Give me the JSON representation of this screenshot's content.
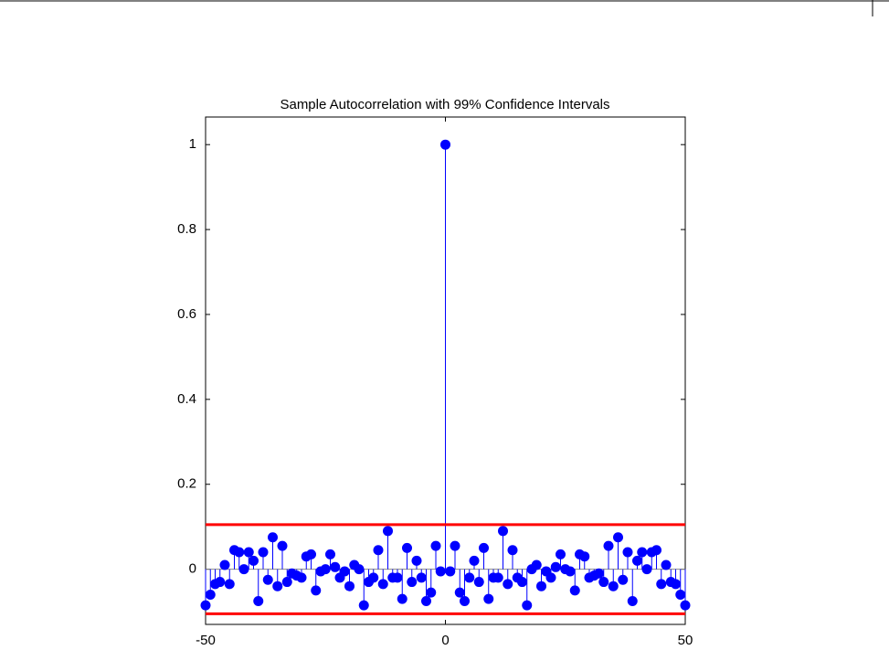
{
  "chart_data": {
    "type": "stem",
    "title": "Sample Autocorrelation with 99% Confidence Intervals",
    "x": [
      -50,
      -49,
      -48,
      -47,
      -46,
      -45,
      -44,
      -43,
      -42,
      -41,
      -40,
      -39,
      -38,
      -37,
      -36,
      -35,
      -34,
      -33,
      -32,
      -31,
      -30,
      -29,
      -28,
      -27,
      -26,
      -25,
      -24,
      -23,
      -22,
      -21,
      -20,
      -19,
      -18,
      -17,
      -16,
      -15,
      -14,
      -13,
      -12,
      -11,
      -10,
      -9,
      -8,
      -7,
      -6,
      -5,
      -4,
      -3,
      -2,
      -1,
      0,
      1,
      2,
      3,
      4,
      5,
      6,
      7,
      8,
      9,
      10,
      11,
      12,
      13,
      14,
      15,
      16,
      17,
      18,
      19,
      20,
      21,
      22,
      23,
      24,
      25,
      26,
      27,
      28,
      29,
      30,
      31,
      32,
      33,
      34,
      35,
      36,
      37,
      38,
      39,
      40,
      41,
      42,
      43,
      44,
      45,
      46,
      47,
      48,
      49,
      50
    ],
    "series": [
      {
        "color": "#0000ff",
        "values": [
          -0.085,
          -0.06,
          -0.035,
          -0.03,
          0.01,
          -0.035,
          0.045,
          0.04,
          0.0,
          0.04,
          0.02,
          -0.075,
          0.04,
          -0.025,
          0.075,
          -0.04,
          0.055,
          -0.03,
          -0.01,
          -0.015,
          -0.02,
          0.03,
          0.035,
          -0.05,
          -0.005,
          0.0,
          0.035,
          0.005,
          -0.02,
          -0.005,
          -0.04,
          0.01,
          0.0,
          -0.085,
          -0.03,
          -0.02,
          0.045,
          -0.035,
          0.09,
          -0.02,
          -0.02,
          -0.07,
          0.05,
          -0.03,
          0.02,
          -0.02,
          -0.075,
          -0.055,
          0.055,
          -0.005,
          1,
          -0.005,
          0.055,
          -0.055,
          -0.075,
          -0.02,
          0.02,
          -0.03,
          0.05,
          -0.07,
          -0.02,
          -0.02,
          0.09,
          -0.035,
          0.045,
          -0.02,
          -0.03,
          -0.085,
          0.0,
          0.01,
          -0.04,
          -0.005,
          -0.02,
          0.005,
          0.035,
          0.0,
          -0.005,
          -0.05,
          0.035,
          0.03,
          -0.02,
          -0.015,
          -0.01,
          -0.03,
          0.055,
          -0.04,
          0.075,
          -0.025,
          0.04,
          -0.075,
          0.02,
          0.04,
          0.0,
          0.04,
          0.045,
          -0.035,
          0.01,
          -0.03,
          -0.035,
          -0.06,
          -0.085
        ]
      }
    ],
    "confidence_bounds": {
      "color": "#ff0000",
      "values": [
        0.105,
        -0.105
      ]
    },
    "xlim": [
      -50,
      50
    ],
    "xticks": [
      -50,
      0,
      50
    ],
    "ylim": [
      -0.13,
      1.065
    ],
    "yticks": [
      0,
      0.2,
      0.4,
      0.6,
      0.8,
      1
    ]
  }
}
